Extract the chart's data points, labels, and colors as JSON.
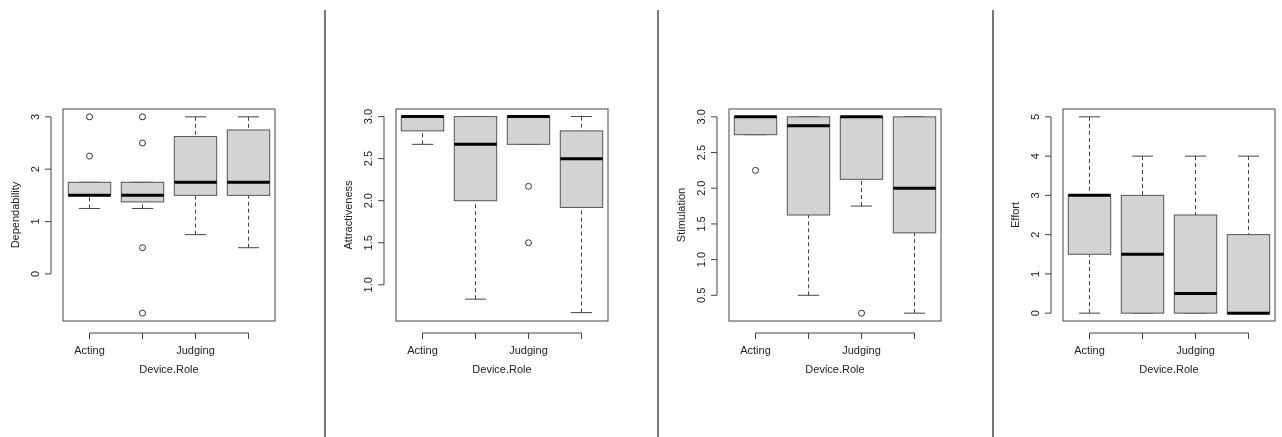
{
  "chart_data": [
    {
      "type": "box",
      "xlabel": "Device.Role",
      "ylabel": "Dependability",
      "categories": [
        "Acting",
        null,
        "Judging",
        null
      ],
      "ylim": [
        -0.9,
        3.15
      ],
      "yticks": [
        0,
        1,
        2,
        3
      ],
      "series": [
        {
          "color": "#d3d3d3",
          "boxes": [
            {
              "low": 1.25,
              "q1": 1.5,
              "median": 1.5,
              "q3": 1.75,
              "high": 1.75,
              "outliers": [
                2.25,
                3
              ]
            },
            {
              "low": 1.25,
              "q1": 1.375,
              "median": 1.5,
              "q3": 1.75,
              "high": 1.75,
              "outliers": [
                3,
                2.5,
                0.5,
                -0.75
              ]
            },
            {
              "low": 0.75,
              "q1": 1.5,
              "median": 1.75,
              "q3": 2.625,
              "high": 3
            },
            {
              "low": 0.5,
              "q1": 1.5,
              "median": 1.75,
              "q3": 2.75,
              "high": 3
            }
          ]
        }
      ]
    },
    {
      "type": "box",
      "xlabel": "Device.Role",
      "ylabel": "Attractiveness",
      "categories": [
        "Acting",
        null,
        "Judging",
        null
      ],
      "ylim": [
        0.57,
        3.09
      ],
      "yticks": [
        {
          "value": 1,
          "label": "1.0"
        },
        {
          "value": 1.5,
          "label": "1.5"
        },
        {
          "value": 2,
          "label": "2.0"
        },
        {
          "value": 2.5,
          "label": "2.5"
        },
        {
          "value": 3,
          "label": "3.0"
        }
      ],
      "series": [
        {
          "color": "#d3d3d3",
          "boxes": [
            {
              "low": 2.67,
              "q1": 2.83,
              "median": 3,
              "q3": 3,
              "high": 3
            },
            {
              "low": 0.83,
              "q1": 2,
              "median": 2.67,
              "q3": 3,
              "high": 3
            },
            {
              "low": 2.67,
              "q1": 2.67,
              "median": 3,
              "q3": 3,
              "high": 3,
              "outliers": [
                2.17,
                1.5
              ]
            },
            {
              "low": 0.67,
              "q1": 1.92,
              "median": 2.5,
              "q3": 2.83,
              "high": 3
            }
          ]
        }
      ]
    },
    {
      "type": "box",
      "xlabel": "Device.Role",
      "ylabel": "Stimulation",
      "categories": [
        "Acting",
        null,
        "Judging",
        null
      ],
      "ylim": [
        0.14,
        3.11
      ],
      "yticks": [
        {
          "value": 0.5,
          "label": "0.5"
        },
        {
          "value": 1,
          "label": "1.0"
        },
        {
          "value": 1.5,
          "label": "1.5"
        },
        {
          "value": 2,
          "label": "2.0"
        },
        {
          "value": 2.5,
          "label": "2.5"
        },
        {
          "value": 3,
          "label": "3.0"
        }
      ],
      "series": [
        {
          "color": "#d3d3d3",
          "boxes": [
            {
              "low": 2.75,
              "q1": 2.75,
              "median": 3,
              "q3": 3,
              "high": 3,
              "outliers": [
                2.25
              ]
            },
            {
              "low": 0.5,
              "q1": 1.625,
              "median": 2.875,
              "q3": 3,
              "high": 3
            },
            {
              "low": 1.75,
              "q1": 2.125,
              "median": 3,
              "q3": 3,
              "high": 3,
              "outliers": [
                0.25
              ]
            },
            {
              "low": 0.25,
              "q1": 1.375,
              "median": 2,
              "q3": 3,
              "high": 3
            }
          ]
        }
      ]
    },
    {
      "type": "box",
      "xlabel": "Device.Role",
      "ylabel": "Effort",
      "categories": [
        "Acting",
        null,
        "Judging",
        null
      ],
      "ylim": [
        -0.2,
        5.2
      ],
      "yticks": [
        0,
        1,
        2,
        3,
        4,
        5
      ],
      "series": [
        {
          "color": "#d3d3d3",
          "boxes": [
            {
              "low": 0,
              "q1": 1.5,
              "median": 3,
              "q3": 3,
              "high": 5
            },
            {
              "low": 0,
              "q1": 0,
              "median": 1.5,
              "q3": 3,
              "high": 4
            },
            {
              "low": 0,
              "q1": 0,
              "median": 0.5,
              "q3": 2.5,
              "high": 4
            },
            {
              "low": 0,
              "q1": 0,
              "median": 0,
              "q3": 2,
              "high": 4
            }
          ]
        }
      ]
    }
  ]
}
